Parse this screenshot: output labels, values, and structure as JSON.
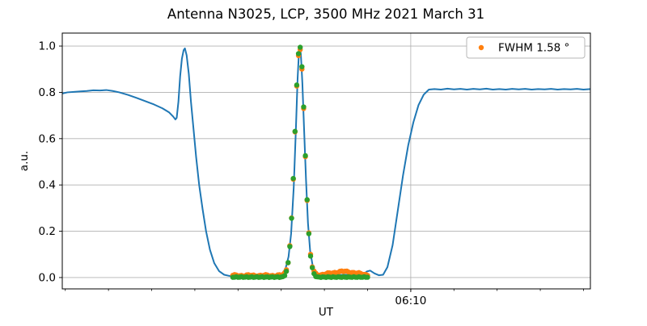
{
  "chart_data": {
    "type": "line",
    "title": "Antenna N3025, LCP, 3500 MHz 2021 March 31",
    "xlabel": "UT",
    "ylabel": "a.u.",
    "x_axis": {
      "unit": "minutes after 06:00 UT",
      "min": 1.93,
      "max": 14.16,
      "minor_tick_step": 1,
      "major_ticks": [
        {
          "x": 10,
          "label": "06:10"
        }
      ],
      "grid_on_major": true
    },
    "y_axis": {
      "min": -0.049,
      "max": 1.056,
      "ticks": [
        {
          "v": 0.0,
          "label": "0.0"
        },
        {
          "v": 0.2,
          "label": "0.2"
        },
        {
          "v": 0.4,
          "label": "0.4"
        },
        {
          "v": 0.6,
          "label": "0.6"
        },
        {
          "v": 0.8,
          "label": "0.8"
        },
        {
          "v": 1.0,
          "label": "1.0"
        }
      ],
      "grid": true
    },
    "legend": {
      "position": "upper right",
      "entries": [
        {
          "label": "FWHM 1.58 °",
          "color": "#ff7f0e",
          "marker": "dot"
        }
      ]
    },
    "colors": {
      "signal": "#1f77b4",
      "data": "#ff7f0e",
      "fit": "#2ca02c",
      "grid": "#b0b0b0",
      "frame": "#000000"
    },
    "series": [
      {
        "name": "antenna-signal",
        "type": "line",
        "color": "#1f77b4",
        "line_width": 2,
        "points": [
          [
            1.93,
            0.795
          ],
          [
            2.05,
            0.8
          ],
          [
            2.2,
            0.802
          ],
          [
            2.35,
            0.804
          ],
          [
            2.5,
            0.806
          ],
          [
            2.65,
            0.809
          ],
          [
            2.8,
            0.808
          ],
          [
            2.95,
            0.81
          ],
          [
            3.1,
            0.806
          ],
          [
            3.25,
            0.8
          ],
          [
            3.45,
            0.789
          ],
          [
            3.65,
            0.776
          ],
          [
            3.85,
            0.762
          ],
          [
            4.05,
            0.748
          ],
          [
            4.25,
            0.731
          ],
          [
            4.4,
            0.714
          ],
          [
            4.5,
            0.695
          ],
          [
            4.55,
            0.683
          ],
          [
            4.58,
            0.69
          ],
          [
            4.62,
            0.76
          ],
          [
            4.66,
            0.87
          ],
          [
            4.7,
            0.945
          ],
          [
            4.74,
            0.982
          ],
          [
            4.77,
            0.99
          ],
          [
            4.81,
            0.96
          ],
          [
            4.86,
            0.88
          ],
          [
            4.91,
            0.76
          ],
          [
            4.97,
            0.64
          ],
          [
            5.03,
            0.52
          ],
          [
            5.1,
            0.4
          ],
          [
            5.18,
            0.295
          ],
          [
            5.26,
            0.2
          ],
          [
            5.35,
            0.12
          ],
          [
            5.45,
            0.062
          ],
          [
            5.56,
            0.028
          ],
          [
            5.68,
            0.012
          ],
          [
            5.8,
            0.007
          ],
          [
            5.95,
            0.005
          ],
          [
            6.15,
            0.004
          ],
          [
            6.35,
            0.005
          ],
          [
            6.55,
            0.004
          ],
          [
            6.75,
            0.005
          ],
          [
            6.9,
            0.007
          ],
          [
            7.0,
            0.012
          ],
          [
            7.1,
            0.038
          ],
          [
            7.17,
            0.09
          ],
          [
            7.23,
            0.19
          ],
          [
            7.29,
            0.39
          ],
          [
            7.34,
            0.64
          ],
          [
            7.38,
            0.86
          ],
          [
            7.41,
            0.97
          ],
          [
            7.43,
            1.0
          ],
          [
            7.455,
            0.965
          ],
          [
            7.49,
            0.84
          ],
          [
            7.53,
            0.64
          ],
          [
            7.575,
            0.42
          ],
          [
            7.62,
            0.235
          ],
          [
            7.67,
            0.115
          ],
          [
            7.73,
            0.05
          ],
          [
            7.8,
            0.022
          ],
          [
            7.88,
            0.013
          ],
          [
            7.98,
            0.01
          ],
          [
            8.15,
            0.01
          ],
          [
            8.35,
            0.011
          ],
          [
            8.55,
            0.012
          ],
          [
            8.75,
            0.01
          ],
          [
            8.9,
            0.012
          ],
          [
            8.98,
            0.026
          ],
          [
            9.06,
            0.03
          ],
          [
            9.16,
            0.018
          ],
          [
            9.26,
            0.01
          ],
          [
            9.36,
            0.012
          ],
          [
            9.46,
            0.045
          ],
          [
            9.58,
            0.14
          ],
          [
            9.7,
            0.29
          ],
          [
            9.82,
            0.44
          ],
          [
            9.94,
            0.57
          ],
          [
            10.06,
            0.67
          ],
          [
            10.18,
            0.745
          ],
          [
            10.3,
            0.79
          ],
          [
            10.42,
            0.812
          ],
          [
            10.55,
            0.814
          ],
          [
            10.7,
            0.812
          ],
          [
            10.85,
            0.816
          ],
          [
            11.0,
            0.813
          ],
          [
            11.15,
            0.815
          ],
          [
            11.3,
            0.812
          ],
          [
            11.45,
            0.815
          ],
          [
            11.6,
            0.813
          ],
          [
            11.75,
            0.816
          ],
          [
            11.9,
            0.812
          ],
          [
            12.05,
            0.814
          ],
          [
            12.2,
            0.812
          ],
          [
            12.35,
            0.815
          ],
          [
            12.5,
            0.813
          ],
          [
            12.65,
            0.815
          ],
          [
            12.8,
            0.812
          ],
          [
            12.95,
            0.814
          ],
          [
            13.1,
            0.813
          ],
          [
            13.25,
            0.815
          ],
          [
            13.4,
            0.812
          ],
          [
            13.55,
            0.814
          ],
          [
            13.7,
            0.813
          ],
          [
            13.85,
            0.815
          ],
          [
            14.0,
            0.812
          ],
          [
            14.16,
            0.814
          ]
        ]
      },
      {
        "name": "scan-data",
        "type": "scatter",
        "color": "#ff7f0e",
        "marker_radius": 3.2,
        "kind": "data",
        "generator": {
          "x_start": 5.88,
          "x_end": 9.0,
          "step": 0.04,
          "gauss": {
            "center": 7.43,
            "sigma": 0.115,
            "amplitude": 0.985
          },
          "baseline": {
            "left": 0.009,
            "mid": 0.005,
            "right": 0.01,
            "bump": {
              "center": 8.45,
              "sigma": 0.28,
              "amplitude": 0.016
            }
          },
          "jitter_amplitude": 0.004
        }
      },
      {
        "name": "gaussian-fit",
        "type": "scatter",
        "color": "#2ca02c",
        "marker_radius": 3.2,
        "kind": "fit",
        "generator": {
          "x_start": 5.88,
          "x_end": 9.02,
          "step": 0.04,
          "gauss": {
            "center": 7.43,
            "sigma": 0.115,
            "amplitude": 1.0
          },
          "floor": 0.002,
          "jitter_amplitude": 0.0015
        }
      }
    ]
  }
}
